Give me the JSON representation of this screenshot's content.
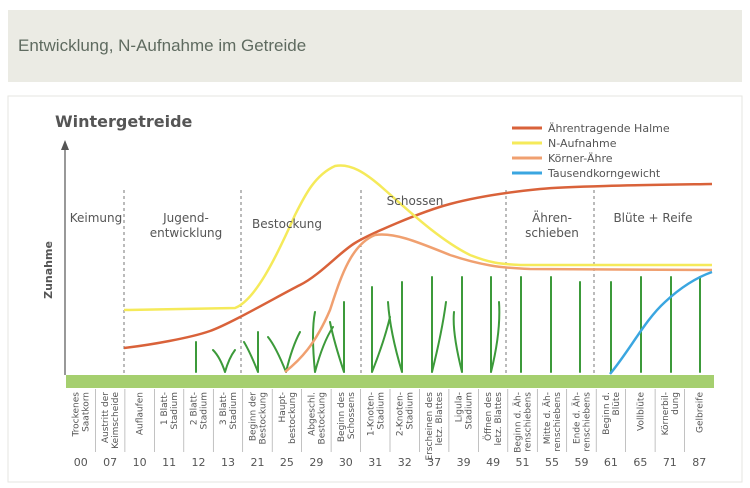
{
  "header": {
    "title": "Entwicklung, N-Aufnahme im Getreide"
  },
  "diagram": {
    "title": "Wintergetreide",
    "y_label": "Zunahme",
    "legend": [
      {
        "name": "Ährentragende Halme",
        "color": "#d9623a"
      },
      {
        "name": "N-Aufnahme",
        "color": "#f5ea5a"
      },
      {
        "name": "Körner-Ähre",
        "color": "#f0a070"
      },
      {
        "name": "Tausendkorngewicht",
        "color": "#3aa6e0"
      }
    ],
    "phases": [
      {
        "lines": [
          "Keimung"
        ]
      },
      {
        "lines": [
          "Jugend-",
          "entwicklung"
        ]
      },
      {
        "lines": [
          "Bestockung"
        ]
      },
      {
        "lines": [
          "Schossen"
        ]
      },
      {
        "lines": [
          "Ähren-",
          "schieben"
        ]
      },
      {
        "lines": [
          "Blüte + Reife"
        ]
      }
    ],
    "stages": [
      {
        "code": "00",
        "lines": [
          "Trockenes",
          "Saatkorn"
        ]
      },
      {
        "code": "07",
        "lines": [
          "Austritt der",
          "Keimscheide"
        ]
      },
      {
        "code": "10",
        "lines": [
          "Auflaufen"
        ]
      },
      {
        "code": "11",
        "lines": [
          "1 Blatt-",
          "Stadium"
        ]
      },
      {
        "code": "12",
        "lines": [
          "2 Blatt-",
          "Stadium"
        ]
      },
      {
        "code": "13",
        "lines": [
          "3 Blatt-",
          "Stadium"
        ]
      },
      {
        "code": "21",
        "lines": [
          "Beginn der",
          "Bestockung"
        ]
      },
      {
        "code": "25",
        "lines": [
          "Haupt-",
          "bestockung"
        ]
      },
      {
        "code": "29",
        "lines": [
          "Abgeschl.",
          "Bestockung"
        ]
      },
      {
        "code": "30",
        "lines": [
          "Beginn des",
          "Schossens"
        ]
      },
      {
        "code": "31",
        "lines": [
          "1-Knoten-",
          "Stadium"
        ]
      },
      {
        "code": "32",
        "lines": [
          "2-Knoten-",
          "Stadium"
        ]
      },
      {
        "code": "37",
        "lines": [
          "Erscheinen des",
          "letz. Blattes"
        ]
      },
      {
        "code": "39",
        "lines": [
          "Ligula-",
          "Stadium"
        ]
      },
      {
        "code": "49",
        "lines": [
          "Öffnen des",
          "letz. Blattes"
        ]
      },
      {
        "code": "51",
        "lines": [
          "Beginn d. Äh-",
          "renschiebens"
        ]
      },
      {
        "code": "55",
        "lines": [
          "Mitte d. Äh-",
          "renschiebens"
        ]
      },
      {
        "code": "59",
        "lines": [
          "Ende d. Äh-",
          "renschiebens"
        ]
      },
      {
        "code": "61",
        "lines": [
          "Beginn d.",
          "Blüte"
        ]
      },
      {
        "code": "65",
        "lines": [
          "Vollblüte"
        ]
      },
      {
        "code": "71",
        "lines": [
          "Körnerbil-",
          "dung"
        ]
      },
      {
        "code": "87",
        "lines": [
          "Gelbreife"
        ]
      }
    ]
  }
}
